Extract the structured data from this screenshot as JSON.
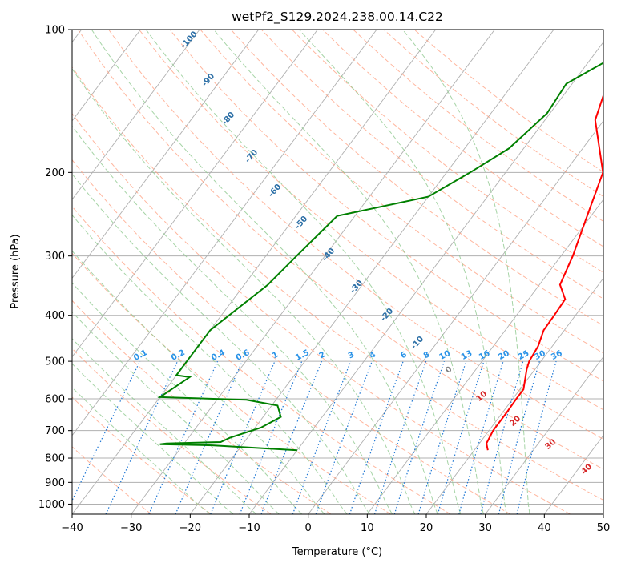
{
  "chart_data": {
    "type": "line",
    "subtype": "skew-T log-P diagram",
    "title": "wetPf2_S129.2024.238.00.14.C22",
    "xlabel": "Temperature (°C)",
    "ylabel": "Pressure (hPa)",
    "xlim": [
      -40,
      50
    ],
    "ylim": [
      1050,
      100
    ],
    "y_scale": "log",
    "grid": true,
    "x_ticks": [
      "−40",
      "−30",
      "−20",
      "−10",
      "0",
      "10",
      "20",
      "30",
      "40",
      "50"
    ],
    "y_ticks": [
      "100",
      "200",
      "300",
      "400",
      "500",
      "600",
      "700",
      "800",
      "900",
      "1000"
    ],
    "colors": {
      "temperature": "#ff0000",
      "dewpoint": "#008000",
      "dry_adiabat": "#ff9d7d",
      "moist_adiabat": "#90c990",
      "mixing_ratio": "#1f77d4",
      "isotherm": "#7f7f7f",
      "grid": "#b0b0b0"
    },
    "series": [
      {
        "name": "Temperature",
        "color": "#ff0000",
        "points": [
          [
            22.3,
            770
          ],
          [
            21.2,
            745
          ],
          [
            20.7,
            700
          ],
          [
            20.7,
            640
          ],
          [
            20.6,
            600
          ],
          [
            20.6,
            573
          ],
          [
            18.6,
            520
          ],
          [
            18.0,
            500
          ],
          [
            17.6,
            465
          ],
          [
            16.5,
            430
          ],
          [
            16.4,
            400
          ],
          [
            16.2,
            370
          ],
          [
            13.5,
            345
          ],
          [
            12.0,
            300
          ],
          [
            9.5,
            250
          ],
          [
            6.5,
            200
          ],
          [
            -1.5,
            155
          ],
          [
            -3.5,
            135
          ],
          [
            -0.5,
            120
          ],
          [
            -1.5,
            110
          ],
          [
            -3.5,
            100
          ]
        ]
      },
      {
        "name": "Dewpoint",
        "color": "#008000",
        "points": [
          [
            -10.0,
            770
          ],
          [
            -25.0,
            752
          ],
          [
            -34.0,
            748
          ],
          [
            -33.0,
            745
          ],
          [
            -24.0,
            740
          ],
          [
            -23.0,
            725
          ],
          [
            -19.0,
            690
          ],
          [
            -17.0,
            655
          ],
          [
            -19.0,
            620
          ],
          [
            -25.0,
            603
          ],
          [
            -40.0,
            595
          ],
          [
            -37.5,
            540
          ],
          [
            -40.0,
            535
          ],
          [
            -40.0,
            430
          ],
          [
            -36.0,
            345
          ],
          [
            -34.8,
            300
          ],
          [
            -33.0,
            247
          ],
          [
            -20.0,
            225
          ],
          [
            -16.0,
            200
          ],
          [
            -12.5,
            178
          ],
          [
            -10.5,
            150
          ],
          [
            -11.0,
            130
          ],
          [
            -5.0,
            110
          ],
          [
            -3.5,
            100
          ]
        ]
      }
    ],
    "dry_adiabat_labels": [
      "-100",
      "-90",
      "-80",
      "-70",
      "-60",
      "-50",
      "-40",
      "-30",
      "-20",
      "-10"
    ],
    "moist_adiabat_labels": [
      "0",
      "10",
      "20",
      "30",
      "40"
    ],
    "mixing_ratio_labels": [
      "0.1",
      "0.2",
      "0.4",
      "0.6",
      "1",
      "1.5",
      "2",
      "3",
      "4",
      "6",
      "8",
      "10",
      "13",
      "16",
      "20",
      "25",
      "30",
      "36"
    ]
  }
}
